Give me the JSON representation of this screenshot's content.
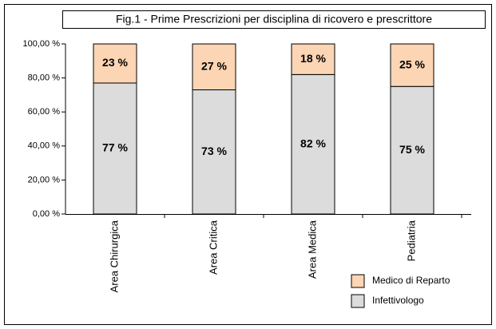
{
  "chart_data": {
    "type": "stacked_bar",
    "title": "Fig.1 - Prime Prescrizioni per disciplina di ricovero e prescrittore",
    "categories": [
      "Area Chirurgica",
      "Area Critica",
      "Area Medica",
      "Pediatria"
    ],
    "series": [
      {
        "name": "Infettivologo",
        "color": "#dcdcdc",
        "values": [
          77,
          73,
          82,
          75
        ],
        "value_labels": [
          "77 %",
          "73 %",
          "82 %",
          "75 %"
        ]
      },
      {
        "name": "Medico di Reparto",
        "color": "#fcd5b4",
        "values": [
          23,
          27,
          18,
          25
        ],
        "value_labels": [
          "23 %",
          "27 %",
          "18 %",
          "25 %"
        ]
      }
    ],
    "ylim": [
      0,
      100
    ],
    "yticks": [
      {
        "value": 0,
        "label": "0,00 %"
      },
      {
        "value": 20,
        "label": "20,00 %"
      },
      {
        "value": 40,
        "label": "40,00 %"
      },
      {
        "value": 60,
        "label": "60,00 %"
      },
      {
        "value": 80,
        "label": "80,00 %"
      },
      {
        "value": 100,
        "label": "100,00 %"
      }
    ]
  }
}
